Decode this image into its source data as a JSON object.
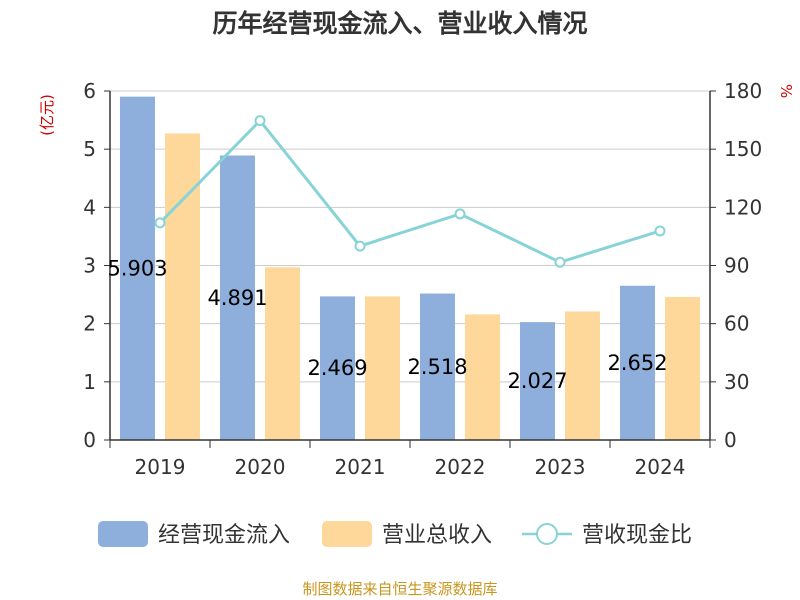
{
  "chart_data": {
    "type": "bar",
    "title": "历年经营现金流入、营业收入情况",
    "categories": [
      "2019",
      "2020",
      "2021",
      "2022",
      "2023",
      "2024"
    ],
    "y_left": {
      "unit": "(亿元)",
      "lim": [
        0,
        6
      ],
      "ticks": [
        0,
        1,
        2,
        3,
        4,
        5,
        6
      ]
    },
    "y_right": {
      "unit": "%",
      "lim": [
        0,
        180
      ],
      "ticks": [
        0,
        30,
        60,
        90,
        120,
        150,
        180
      ]
    },
    "grid": true,
    "legend_position": "bottom",
    "series": [
      {
        "name": "经营现金流入",
        "kind": "bar",
        "axis": "left",
        "color": "#8eaedb",
        "values": [
          5.903,
          4.891,
          2.469,
          2.518,
          2.027,
          2.652
        ],
        "labels": [
          "5.903",
          "4.891",
          "2.469",
          "2.518",
          "2.027",
          "2.652"
        ]
      },
      {
        "name": "营业总收入",
        "kind": "bar",
        "axis": "left",
        "color": "#fdd89a",
        "values": [
          5.27,
          2.97,
          2.47,
          2.16,
          2.21,
          2.46
        ]
      },
      {
        "name": "营收现金比",
        "kind": "line",
        "axis": "right",
        "color": "#88d3d7",
        "values": [
          112,
          164.7,
          100,
          116.6,
          91.7,
          107.8
        ]
      }
    ],
    "source": "制图数据来自恒生聚源数据库"
  }
}
